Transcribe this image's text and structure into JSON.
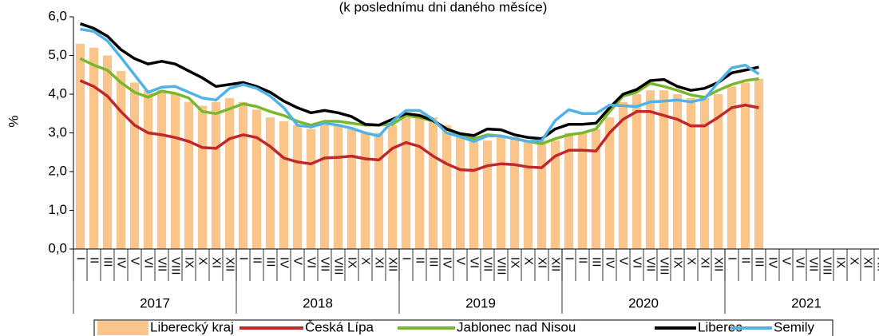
{
  "chart_data": {
    "type": "bar-line",
    "subtitle": "(k poslednímu dni daného měsíce)",
    "y_label": "%",
    "categories": [
      "I",
      "II",
      "III",
      "IV",
      "V",
      "VI",
      "VII",
      "VIII",
      "IX",
      "X",
      "XI",
      "XII",
      "I",
      "II",
      "III",
      "IV",
      "V",
      "VI",
      "VII",
      "VIII",
      "IX",
      "X",
      "XI",
      "XII",
      "I",
      "II",
      "III",
      "IV",
      "V",
      "VI",
      "VII",
      "VIII",
      "IX",
      "X",
      "XI",
      "XII",
      "I",
      "II",
      "III",
      "IV",
      "V",
      "VI",
      "VII",
      "VIII",
      "IX",
      "X",
      "XI",
      "XII",
      "I",
      "II",
      "III",
      "IV",
      "V",
      "VI",
      "VII",
      "VIII",
      "IX",
      "X",
      "XI",
      "XII"
    ],
    "years": [
      "2017",
      "2018",
      "2019",
      "2020",
      "2021"
    ],
    "ylim": [
      0,
      6
    ],
    "yticks": [
      {
        "value": 0,
        "label": "0,0"
      },
      {
        "value": 1,
        "label": "1,0"
      },
      {
        "value": 2,
        "label": "2,0"
      },
      {
        "value": 3,
        "label": "3,0"
      },
      {
        "value": 4,
        "label": "4,0"
      },
      {
        "value": 5,
        "label": "5,0"
      },
      {
        "value": 6,
        "label": "6,0"
      }
    ],
    "series": [
      {
        "name": "Liberecký kraj",
        "kind": "bar",
        "color": "#fac58a",
        "values": [
          5.3,
          5.2,
          5.0,
          4.6,
          4.3,
          4.1,
          4.1,
          4.0,
          3.8,
          3.7,
          3.8,
          3.9,
          3.8,
          3.6,
          3.4,
          3.3,
          3.2,
          3.1,
          3.2,
          3.2,
          3.1,
          3.0,
          3.0,
          3.2,
          3.4,
          3.5,
          3.4,
          3.2,
          3.0,
          2.9,
          2.8,
          2.9,
          2.9,
          2.8,
          2.8,
          2.8,
          3.0,
          3.0,
          3.1,
          3.4,
          3.8,
          4.0,
          4.1,
          4.1,
          4.0,
          3.9,
          3.9,
          4.0,
          4.2,
          4.3,
          4.4,
          null,
          null,
          null,
          null,
          null,
          null,
          null,
          null,
          null
        ]
      },
      {
        "name": "Česká Lípa",
        "kind": "line",
        "color": "#c0282d",
        "values": [
          4.35,
          4.2,
          3.95,
          3.55,
          3.2,
          3.0,
          2.95,
          2.88,
          2.78,
          2.62,
          2.6,
          2.85,
          2.95,
          2.88,
          2.65,
          2.35,
          2.25,
          2.2,
          2.35,
          2.37,
          2.4,
          2.33,
          2.3,
          2.6,
          2.75,
          2.65,
          2.4,
          2.2,
          2.05,
          2.03,
          2.15,
          2.2,
          2.18,
          2.12,
          2.1,
          2.4,
          2.55,
          2.55,
          2.53,
          3.0,
          3.35,
          3.55,
          3.55,
          3.45,
          3.35,
          3.18,
          3.18,
          3.4,
          3.65,
          3.72,
          3.65,
          null,
          null,
          null,
          null,
          null,
          null,
          null,
          null,
          null
        ]
      },
      {
        "name": "Jablonec nad Nisou",
        "kind": "line",
        "color": "#78b82a",
        "values": [
          4.92,
          4.75,
          4.62,
          4.3,
          4.05,
          3.92,
          4.08,
          4.02,
          3.9,
          3.55,
          3.5,
          3.62,
          3.75,
          3.68,
          3.55,
          3.45,
          3.3,
          3.2,
          3.3,
          3.3,
          3.25,
          3.2,
          3.2,
          3.22,
          3.45,
          3.4,
          3.3,
          3.1,
          2.95,
          2.85,
          2.95,
          2.92,
          2.85,
          2.78,
          2.72,
          2.85,
          2.95,
          3.0,
          3.1,
          3.55,
          3.95,
          4.05,
          4.28,
          4.2,
          4.1,
          3.98,
          3.92,
          4.1,
          4.25,
          4.35,
          4.4,
          null,
          null,
          null,
          null,
          null,
          null,
          null,
          null,
          null
        ]
      },
      {
        "name": "Liberec",
        "kind": "line",
        "color": "#000000",
        "values": [
          5.82,
          5.7,
          5.5,
          5.15,
          4.92,
          4.78,
          4.85,
          4.78,
          4.6,
          4.42,
          4.2,
          4.25,
          4.3,
          4.2,
          4.05,
          3.82,
          3.65,
          3.52,
          3.58,
          3.52,
          3.42,
          3.22,
          3.2,
          3.35,
          3.5,
          3.45,
          3.32,
          3.1,
          2.98,
          2.93,
          3.1,
          3.08,
          2.95,
          2.88,
          2.85,
          3.1,
          3.22,
          3.22,
          3.25,
          3.65,
          4.0,
          4.12,
          4.35,
          4.38,
          4.2,
          4.1,
          4.15,
          4.3,
          4.55,
          4.62,
          4.7,
          null,
          null,
          null,
          null,
          null,
          null,
          null,
          null,
          null
        ]
      },
      {
        "name": "Semily",
        "kind": "line",
        "color": "#4fb3e8",
        "values": [
          5.68,
          5.62,
          5.38,
          4.95,
          4.5,
          4.05,
          4.18,
          4.2,
          4.05,
          3.9,
          3.85,
          4.15,
          4.25,
          4.15,
          3.95,
          3.65,
          3.2,
          3.15,
          3.25,
          3.2,
          3.12,
          3.0,
          2.92,
          3.3,
          3.58,
          3.58,
          3.35,
          3.0,
          2.9,
          2.78,
          2.92,
          2.92,
          2.85,
          2.78,
          2.8,
          3.32,
          3.6,
          3.5,
          3.5,
          3.72,
          3.7,
          3.68,
          3.8,
          3.82,
          3.85,
          3.8,
          3.88,
          4.3,
          4.68,
          4.75,
          4.52,
          null,
          null,
          null,
          null,
          null,
          null,
          null,
          null,
          null
        ]
      }
    ]
  }
}
